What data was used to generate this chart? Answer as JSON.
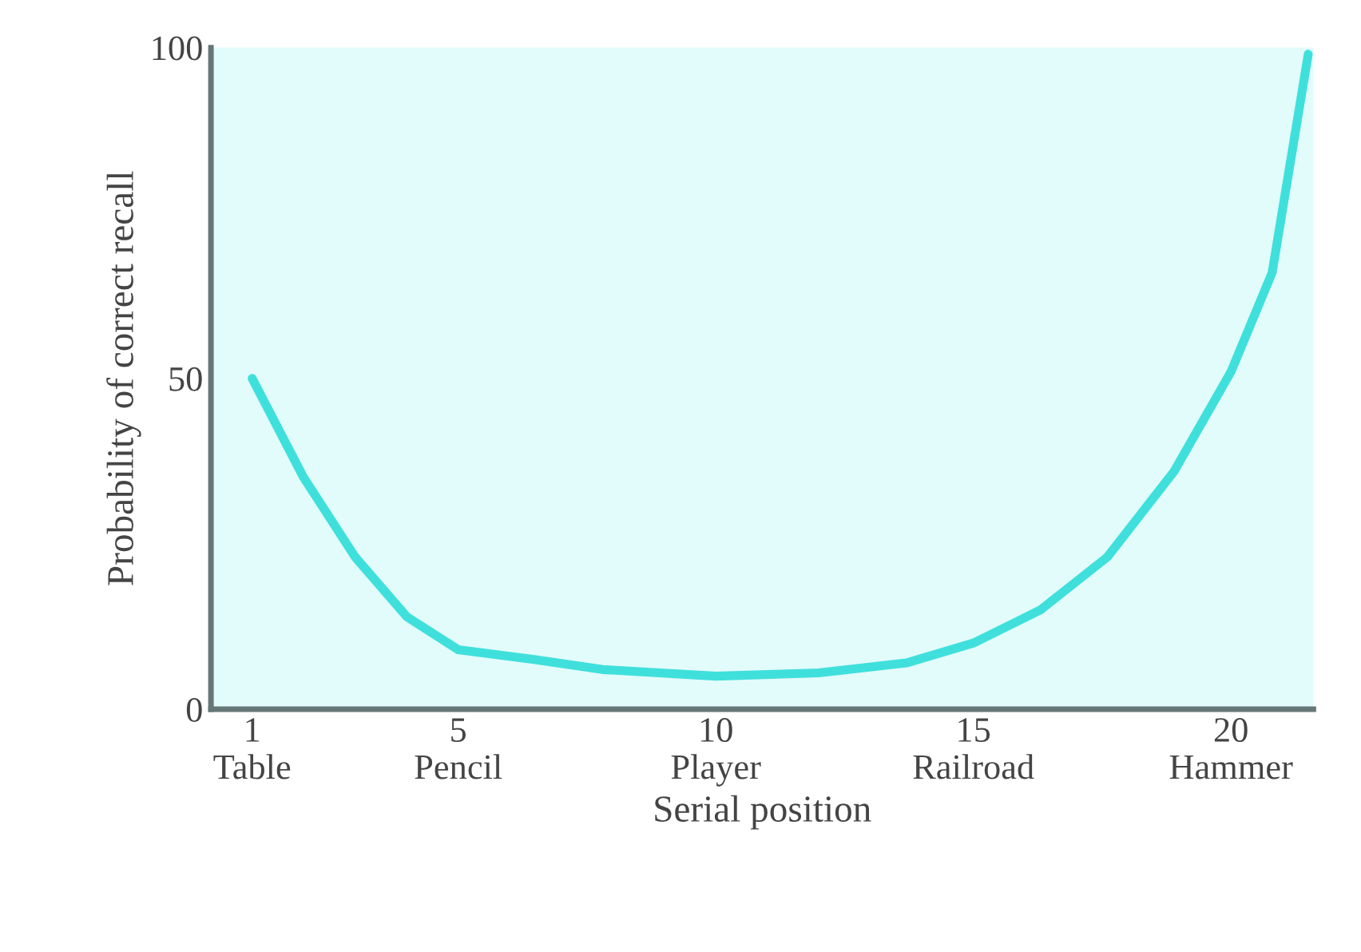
{
  "chart_data": {
    "type": "line",
    "xlabel": "Serial position",
    "ylabel": "Probability of correct recall",
    "x": [
      1,
      2,
      3,
      4,
      5,
      6.5,
      7.8,
      10,
      12,
      13.7,
      15,
      16.3,
      17.6,
      18.9,
      20,
      20.8,
      21.5
    ],
    "series": [
      {
        "color": "#3fe0dc",
        "values": [
          50,
          35,
          23,
          14,
          9,
          7.5,
          6,
          5,
          5.5,
          7,
          10,
          15,
          23,
          36,
          51,
          66,
          99
        ]
      }
    ],
    "xlim": [
      0.2,
      21.6
    ],
    "ylim": [
      0,
      100
    ],
    "xticks": [
      {
        "value": 1,
        "label": "1\nTable"
      },
      {
        "value": 5,
        "label": "5\nPencil"
      },
      {
        "value": 10,
        "label": "10\nPlayer"
      },
      {
        "value": 15,
        "label": "15\nRailroad"
      },
      {
        "value": 20,
        "label": "20\nHammer"
      }
    ],
    "yticks": [
      0,
      50,
      100
    ],
    "grid": false,
    "marker": "none",
    "line_style": "solid"
  }
}
